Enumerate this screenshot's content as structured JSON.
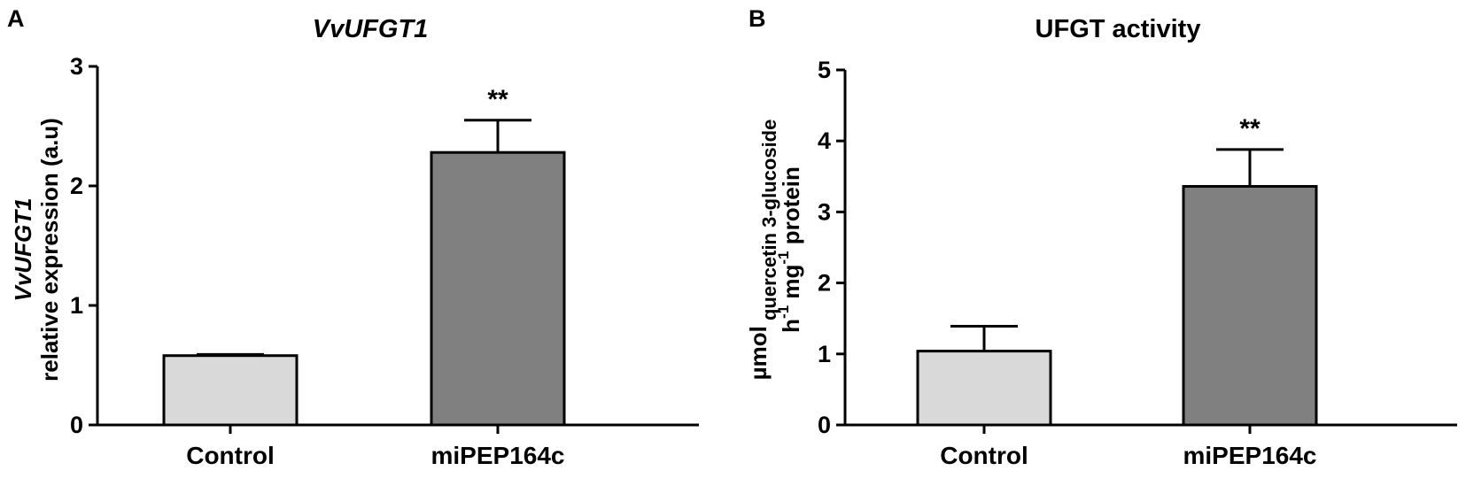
{
  "panels": [
    {
      "letter": "A",
      "title": "VvUFGT1",
      "title_italic": true,
      "ylabel_lines": [
        {
          "parts": [
            {
              "text": "VvUFGT1",
              "italic": true
            }
          ]
        },
        {
          "parts": [
            {
              "text": "relative expression (a.u)",
              "italic": false
            }
          ]
        }
      ]
    },
    {
      "letter": "B",
      "title": "UFGT activity",
      "title_italic": false,
      "ylabel_lines": [
        {
          "parts": [
            {
              "text": "h",
              "italic": false
            },
            {
              "text": "-1",
              "sup": true
            },
            {
              "text": " mg",
              "italic": false
            },
            {
              "text": "-1",
              "sup": true
            },
            {
              "text": " protein",
              "italic": false
            }
          ]
        },
        {
          "parts": [
            {
              "text": "µmol",
              "italic": false
            },
            {
              "text": " quercetin 3-glucoside",
              "sub": true
            }
          ]
        }
      ]
    }
  ],
  "chart_data": [
    {
      "type": "bar",
      "title": "VvUFGT1",
      "ylabel": "VvUFGT1 relative expression (a.u)",
      "categories": [
        "Control",
        "miPEP164c"
      ],
      "values": [
        0.58,
        2.28
      ],
      "error": [
        0.01,
        0.27
      ],
      "significance": [
        "",
        "**"
      ],
      "colors": [
        "#d9d9d9",
        "#808080"
      ],
      "ylim": [
        0,
        3
      ],
      "yticks": [
        0,
        1,
        2,
        3
      ]
    },
    {
      "type": "bar",
      "title": "UFGT activity",
      "ylabel": "µmol quercetin 3-glucoside h-1 mg-1 protein",
      "categories": [
        "Control",
        "miPEP164c"
      ],
      "values": [
        1.04,
        3.36
      ],
      "error": [
        0.35,
        0.52
      ],
      "significance": [
        "",
        "**"
      ],
      "colors": [
        "#d9d9d9",
        "#808080"
      ],
      "ylim": [
        0,
        5
      ],
      "yticks": [
        0,
        1,
        2,
        3,
        4,
        5
      ]
    }
  ]
}
